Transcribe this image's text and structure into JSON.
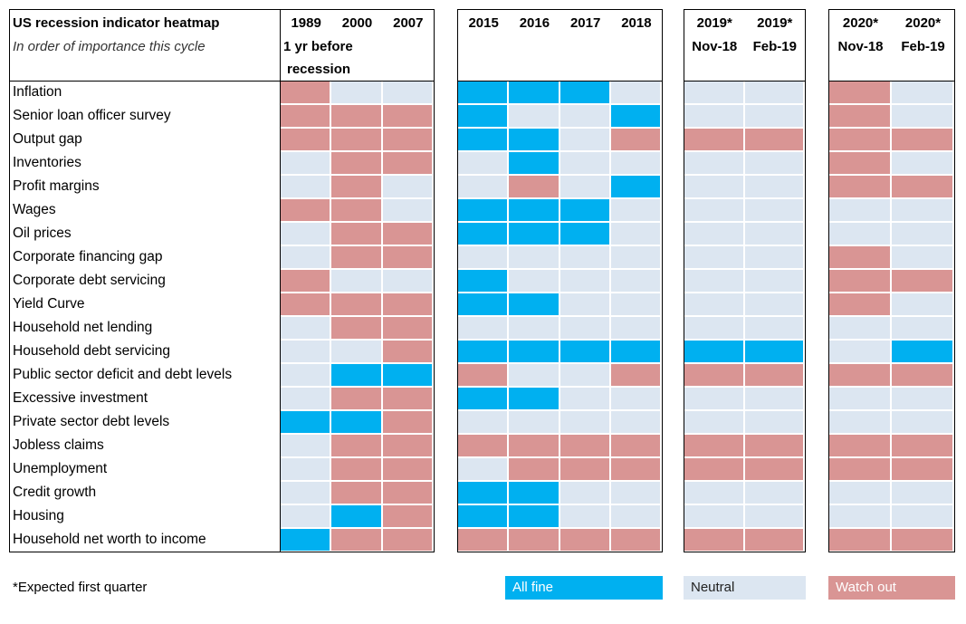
{
  "header": {
    "title": "US recession indicator heatmap",
    "subtitle": "In order of importance this cycle",
    "note_line1": "1 yr before",
    "note_line2": "recession"
  },
  "colors": {
    "A": "#00b0f0",
    "N": "#dce6f1",
    "W": "#d99594"
  },
  "chart_data": {
    "type": "heatmap",
    "title": "US recession indicator heatmap",
    "categories_legend": {
      "A": "All fine",
      "N": "Neutral",
      "W": "Watch out"
    },
    "groups": [
      {
        "columns": [
          {
            "top": "1989",
            "bottom": ""
          },
          {
            "top": "2000",
            "bottom": ""
          },
          {
            "top": "2007",
            "bottom": ""
          }
        ]
      },
      {
        "columns": [
          {
            "top": "2015",
            "bottom": ""
          },
          {
            "top": "2016",
            "bottom": ""
          },
          {
            "top": "2017",
            "bottom": ""
          },
          {
            "top": "2018",
            "bottom": ""
          }
        ]
      },
      {
        "columns": [
          {
            "top": "2019*",
            "bottom": "Nov-18"
          },
          {
            "top": "2019*",
            "bottom": "Feb-19"
          }
        ]
      },
      {
        "columns": [
          {
            "top": "2020*",
            "bottom": "Nov-18"
          },
          {
            "top": "2020*",
            "bottom": "Feb-19"
          }
        ]
      }
    ],
    "rows": [
      {
        "label": "Inflation",
        "values": [
          "W",
          "N",
          "N",
          "A",
          "A",
          "A",
          "N",
          "N",
          "N",
          "W",
          "N"
        ]
      },
      {
        "label": "Senior loan officer survey",
        "values": [
          "W",
          "W",
          "W",
          "A",
          "N",
          "N",
          "A",
          "N",
          "N",
          "W",
          "N"
        ]
      },
      {
        "label": "Output gap",
        "values": [
          "W",
          "W",
          "W",
          "A",
          "A",
          "N",
          "W",
          "W",
          "W",
          "W",
          "W"
        ]
      },
      {
        "label": "Inventories",
        "values": [
          "N",
          "W",
          "W",
          "N",
          "A",
          "N",
          "N",
          "N",
          "N",
          "W",
          "N"
        ]
      },
      {
        "label": "Profit margins",
        "values": [
          "N",
          "W",
          "N",
          "N",
          "W",
          "N",
          "A",
          "N",
          "N",
          "W",
          "W"
        ]
      },
      {
        "label": "Wages",
        "values": [
          "W",
          "W",
          "N",
          "A",
          "A",
          "A",
          "N",
          "N",
          "N",
          "N",
          "N"
        ]
      },
      {
        "label": "Oil prices",
        "values": [
          "N",
          "W",
          "W",
          "A",
          "A",
          "A",
          "N",
          "N",
          "N",
          "N",
          "N"
        ]
      },
      {
        "label": "Corporate financing gap",
        "values": [
          "N",
          "W",
          "W",
          "N",
          "N",
          "N",
          "N",
          "N",
          "N",
          "W",
          "N"
        ]
      },
      {
        "label": "Corporate debt servicing",
        "values": [
          "W",
          "N",
          "N",
          "A",
          "N",
          "N",
          "N",
          "N",
          "N",
          "W",
          "W"
        ]
      },
      {
        "label": "Yield Curve",
        "values": [
          "W",
          "W",
          "W",
          "A",
          "A",
          "N",
          "N",
          "N",
          "N",
          "W",
          "N"
        ]
      },
      {
        "label": "Household net lending",
        "values": [
          "N",
          "W",
          "W",
          "N",
          "N",
          "N",
          "N",
          "N",
          "N",
          "N",
          "N"
        ]
      },
      {
        "label": "Household debt servicing",
        "values": [
          "N",
          "N",
          "W",
          "A",
          "A",
          "A",
          "A",
          "A",
          "A",
          "N",
          "A"
        ]
      },
      {
        "label": "Public sector deficit and debt levels",
        "values": [
          "N",
          "A",
          "A",
          "W",
          "N",
          "N",
          "W",
          "W",
          "W",
          "W",
          "W"
        ]
      },
      {
        "label": "Excessive investment",
        "values": [
          "N",
          "W",
          "W",
          "A",
          "A",
          "N",
          "N",
          "N",
          "N",
          "N",
          "N"
        ]
      },
      {
        "label": "Private sector debt levels",
        "values": [
          "A",
          "A",
          "W",
          "N",
          "N",
          "N",
          "N",
          "N",
          "N",
          "N",
          "N"
        ]
      },
      {
        "label": "Jobless claims",
        "values": [
          "N",
          "W",
          "W",
          "W",
          "W",
          "W",
          "W",
          "W",
          "W",
          "W",
          "W"
        ]
      },
      {
        "label": "Unemployment",
        "values": [
          "N",
          "W",
          "W",
          "N",
          "W",
          "W",
          "W",
          "W",
          "W",
          "W",
          "W"
        ]
      },
      {
        "label": "Credit growth",
        "values": [
          "N",
          "W",
          "W",
          "A",
          "A",
          "N",
          "N",
          "N",
          "N",
          "N",
          "N"
        ]
      },
      {
        "label": "Housing",
        "values": [
          "N",
          "A",
          "W",
          "A",
          "A",
          "N",
          "N",
          "N",
          "N",
          "N",
          "N"
        ]
      },
      {
        "label": "Household net worth to income",
        "values": [
          "A",
          "W",
          "W",
          "W",
          "W",
          "W",
          "W",
          "W",
          "W",
          "W",
          "W"
        ]
      }
    ]
  },
  "legend": {
    "all_fine": "All fine",
    "neutral": "Neutral",
    "watch_out": "Watch out"
  },
  "footnote": "*Expected first quarter"
}
